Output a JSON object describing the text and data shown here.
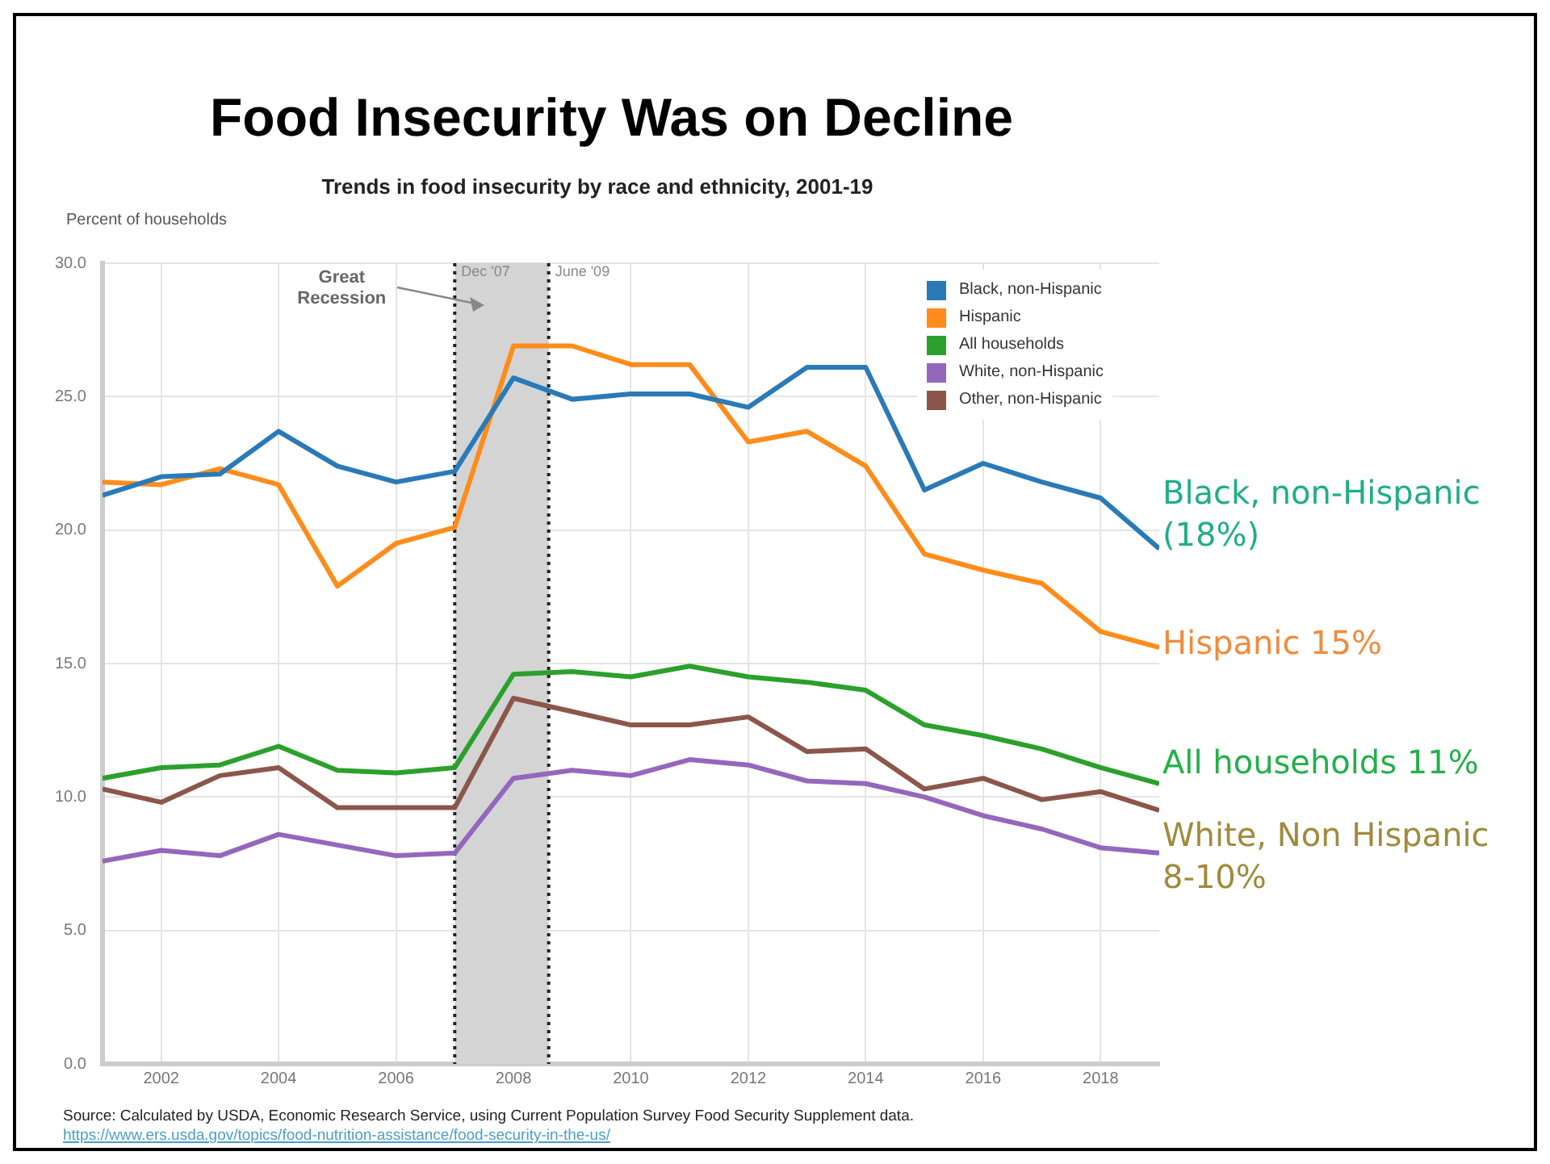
{
  "chart_data": {
    "type": "line",
    "title": "Food Insecurity Was on Decline",
    "subtitle": "Trends in food insecurity by race and ethnicity, 2001-19",
    "ylabel": "Percent of households",
    "x": [
      2001,
      2002,
      2003,
      2004,
      2005,
      2006,
      2007,
      2008,
      2009,
      2010,
      2011,
      2012,
      2013,
      2014,
      2015,
      2016,
      2017,
      2018,
      2019
    ],
    "series": [
      {
        "name": "Black, non-Hispanic",
        "color": "#2a7ab8",
        "values": [
          21.3,
          22.0,
          22.1,
          23.7,
          22.4,
          21.8,
          22.2,
          25.7,
          24.9,
          25.1,
          25.1,
          24.6,
          26.1,
          26.1,
          21.5,
          22.5,
          21.8,
          21.2,
          19.3
        ]
      },
      {
        "name": "Hispanic",
        "color": "#ff8c1a",
        "values": [
          21.8,
          21.7,
          22.3,
          21.7,
          17.9,
          19.5,
          20.1,
          26.9,
          26.9,
          26.2,
          26.2,
          23.3,
          23.7,
          22.4,
          19.1,
          18.5,
          18.0,
          16.2,
          15.6
        ]
      },
      {
        "name": "All households",
        "color": "#2ca02c",
        "values": [
          10.7,
          11.1,
          11.2,
          11.9,
          11.0,
          10.9,
          11.1,
          14.6,
          14.7,
          14.5,
          14.9,
          14.5,
          14.3,
          14.0,
          12.7,
          12.3,
          11.8,
          11.1,
          10.5
        ]
      },
      {
        "name": "White, non-Hispanic",
        "color": "#9467bd",
        "values": [
          7.6,
          8.0,
          7.8,
          8.6,
          8.2,
          7.8,
          7.9,
          10.7,
          11.0,
          10.8,
          11.4,
          11.2,
          10.6,
          10.5,
          10.0,
          9.3,
          8.8,
          8.1,
          7.9
        ]
      },
      {
        "name": "Other, non-Hispanic",
        "color": "#8c564b",
        "values": [
          10.3,
          9.8,
          10.8,
          11.1,
          9.6,
          9.6,
          9.6,
          13.7,
          13.2,
          12.7,
          12.7,
          13.0,
          11.7,
          11.8,
          10.3,
          10.7,
          9.9,
          10.2,
          9.5
        ]
      }
    ],
    "xlim": [
      2001,
      2019
    ],
    "xticks": [
      2002,
      2004,
      2006,
      2008,
      2010,
      2012,
      2014,
      2016,
      2018
    ],
    "ylim": [
      0,
      30
    ],
    "yticks": [
      {
        "value": 0,
        "label": "0.0"
      },
      {
        "value": 5,
        "label": "5.0"
      },
      {
        "value": 10,
        "label": "10.0"
      },
      {
        "value": 15,
        "label": "15.0"
      },
      {
        "value": 20,
        "label": "20.0"
      },
      {
        "value": 25,
        "label": "25.0"
      },
      {
        "value": 30,
        "label": "30.0"
      }
    ],
    "grid": true,
    "legend": "top right",
    "marker": "none",
    "line_style": "solid",
    "bands": [
      {
        "axis": "x",
        "from": 2007,
        "to": 2008.6,
        "label": "Great Recession",
        "color": "#d4d4d4"
      }
    ],
    "ref_lines": [
      {
        "axis": "x",
        "value": 2007,
        "label": "Dec '07",
        "line_style": "dotted",
        "color": "#222222"
      },
      {
        "axis": "x",
        "value": 2008.6,
        "label": "June '09",
        "line_style": "dotted",
        "color": "#222222"
      }
    ],
    "annotations": [
      "Source: Calculated by USDA, Economic Research Service, using Current Population Survey Food Security Supplement data.",
      "https://www.ers.usda.gov/topics/food-nutrition-assistance/food-security-in-the-us/",
      "Black, non-Hispanic\n(18%)",
      "Hispanic 15%",
      "All households 11%",
      "White, Non Hispanic\n8-10%"
    ]
  }
}
